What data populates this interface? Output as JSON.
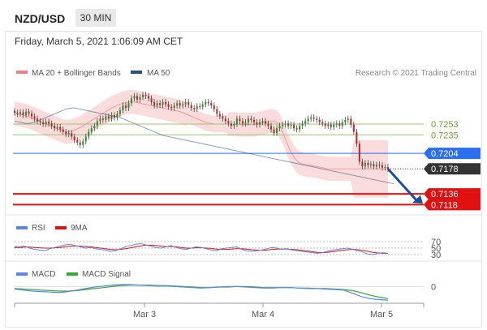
{
  "header": {
    "symbol": "NZD/USD",
    "timeframe": "30 MIN",
    "datetime": "Friday, March 5, 2021 1:06:09 AM CET"
  },
  "legend": {
    "bollinger": "MA 20 + Bollinger Bands",
    "ma50": "MA 50"
  },
  "copyright": "Research © 2021 Trading Central",
  "colors": {
    "bollinger": "#f08080",
    "ma50": "#2a4f8f",
    "bull": "#2f8f2f",
    "bear": "#b03030",
    "resistance": "#9cc36f",
    "pivot": "#2d6df0",
    "support": "#e11111"
  },
  "rsi_legend": {
    "rsi": "RSI",
    "ma": "9MA"
  },
  "macd_legend": {
    "macd": "MACD",
    "signal": "MACD Signal"
  },
  "chart_data": [
    {
      "type": "candlestick",
      "ylim": [
        0.7105,
        0.7325
      ],
      "x_ticks": [
        "Mar 3",
        "Mar 4",
        "Mar 5"
      ],
      "price_levels": [
        {
          "label": "0.7253",
          "value": 0.7253,
          "kind": "resistance"
        },
        {
          "label": "0.7235",
          "value": 0.7235,
          "kind": "resistance"
        },
        {
          "label": "0.7204",
          "value": 0.7204,
          "kind": "pivot"
        },
        {
          "label": "0.7178",
          "value": 0.7178,
          "kind": "last"
        },
        {
          "label": "0.7136",
          "value": 0.7136,
          "kind": "support"
        },
        {
          "label": "0.7118",
          "value": 0.7118,
          "kind": "support"
        }
      ],
      "close": [
        0.7272,
        0.727,
        0.7273,
        0.7268,
        0.7274,
        0.7271,
        0.7266,
        0.7262,
        0.7258,
        0.7256,
        0.7253,
        0.7257,
        0.7254,
        0.725,
        0.7246,
        0.7248,
        0.7244,
        0.724,
        0.7236,
        0.7238,
        0.7232,
        0.7226,
        0.7222,
        0.7218,
        0.7224,
        0.7232,
        0.724,
        0.7246,
        0.725,
        0.7258,
        0.7262,
        0.726,
        0.7266,
        0.7262,
        0.7268,
        0.7264,
        0.727,
        0.7276,
        0.7284,
        0.728,
        0.7288,
        0.7296,
        0.73,
        0.7294,
        0.7298,
        0.7302,
        0.73,
        0.7296,
        0.729,
        0.7284,
        0.7288,
        0.7285,
        0.729,
        0.7286,
        0.7282,
        0.728,
        0.7284,
        0.7288,
        0.7284,
        0.7286,
        0.729,
        0.7285,
        0.728,
        0.7278,
        0.7283,
        0.7282,
        0.7286,
        0.729,
        0.7288,
        0.7284,
        0.7278,
        0.727,
        0.7266,
        0.7262,
        0.7258,
        0.7254,
        0.725,
        0.7253,
        0.7262,
        0.7258,
        0.7254,
        0.7256,
        0.7262,
        0.726,
        0.7256,
        0.7252,
        0.7256,
        0.7258,
        0.7254,
        0.725,
        0.7244,
        0.7238,
        0.7246,
        0.725,
        0.7252,
        0.7254,
        0.725,
        0.7252,
        0.7246,
        0.7244,
        0.725,
        0.7254,
        0.7258,
        0.7262,
        0.7264,
        0.7262,
        0.726,
        0.7256,
        0.7254,
        0.725,
        0.7252,
        0.7248,
        0.7252,
        0.7254,
        0.725,
        0.7256,
        0.726,
        0.7262,
        0.7252,
        0.724,
        0.722,
        0.719,
        0.7182,
        0.7188,
        0.7184,
        0.7186,
        0.7182,
        0.7185,
        0.7184,
        0.718,
        0.7181,
        0.7178
      ],
      "ma20": [
        0.727,
        0.727,
        0.7269,
        0.7268,
        0.7267,
        0.7265,
        0.7263,
        0.7261,
        0.7259,
        0.7257,
        0.7255,
        0.7253,
        0.7251,
        0.7249,
        0.7247,
        0.7245,
        0.7243,
        0.7241,
        0.724,
        0.724,
        0.7241,
        0.7243,
        0.7245,
        0.7247,
        0.725,
        0.7253,
        0.7256,
        0.7259,
        0.7262,
        0.7265,
        0.7268,
        0.7271,
        0.7274,
        0.7277,
        0.728,
        0.7282,
        0.7284,
        0.7286,
        0.7288,
        0.7289,
        0.729,
        0.729,
        0.729,
        0.7289,
        0.7288,
        0.7287,
        0.7286,
        0.7285,
        0.7284,
        0.7283,
        0.7282,
        0.7281,
        0.728,
        0.7279,
        0.7278,
        0.7277,
        0.7276,
        0.7275,
        0.7274,
        0.7272,
        0.727,
        0.7268,
        0.7266,
        0.7264,
        0.7262,
        0.726,
        0.7258,
        0.7256,
        0.7255,
        0.7254,
        0.7253,
        0.7253,
        0.7253,
        0.7253,
        0.7253,
        0.7253,
        0.7253,
        0.7253,
        0.7252,
        0.7252,
        0.7252,
        0.7252,
        0.7252,
        0.7252,
        0.7252,
        0.7253,
        0.7254,
        0.7255,
        0.7256,
        0.7257,
        0.7258,
        0.7258,
        0.7256,
        0.725,
        0.724,
        0.7228,
        0.7216,
        0.7206,
        0.7198,
        0.7192,
        0.7188,
        0.7186,
        0.7185,
        0.7184,
        0.7184,
        0.7183,
        0.7182,
        0.7181,
        0.718,
        0.7179,
        0.7178,
        0.7178,
        0.7178,
        0.7178,
        0.7178,
        0.7178,
        0.7178,
        0.7178,
        0.7178,
        0.7178,
        0.7178,
        0.7178,
        0.7178,
        0.7178,
        0.7178,
        0.7178,
        0.7178,
        0.7178,
        0.7178,
        0.7178,
        0.7178,
        0.7178
      ],
      "bb_width": 0.002,
      "ma50": [
        0.7258,
        0.7257,
        0.7256,
        0.7255,
        0.7254,
        0.7254,
        0.7255,
        0.7256,
        0.7258,
        0.726,
        0.7262,
        0.7264,
        0.7266,
        0.7268,
        0.727,
        0.7272,
        0.7274,
        0.7276,
        0.7278,
        0.7279,
        0.728,
        0.728,
        0.7279,
        0.7278,
        0.7277,
        0.7276,
        0.7275,
        0.7274,
        0.7273,
        0.7272,
        0.7271,
        0.727,
        0.7269,
        0.7268,
        0.7267,
        0.7266,
        0.7265,
        0.7264,
        0.7262,
        0.726,
        0.7258,
        0.7256,
        0.7254,
        0.7252,
        0.725,
        0.7248,
        0.7246,
        0.7244,
        0.7242,
        0.724,
        0.7238,
        0.7236,
        0.7234,
        0.7233,
        0.7232,
        0.7231,
        0.723,
        0.7229,
        0.7228,
        0.7227,
        0.7226,
        0.7225,
        0.7224,
        0.7223,
        0.7222,
        0.7221,
        0.722,
        0.7219,
        0.7218,
        0.7217,
        0.7216,
        0.7215,
        0.7214,
        0.7213,
        0.7212,
        0.7211,
        0.721,
        0.7209,
        0.7208,
        0.7207,
        0.7206,
        0.7205,
        0.7204,
        0.7203,
        0.7202,
        0.7201,
        0.72,
        0.7199,
        0.7198,
        0.7197,
        0.7196,
        0.7195,
        0.7194,
        0.7193,
        0.7192,
        0.7191,
        0.719,
        0.7189,
        0.7188,
        0.7187,
        0.7186,
        0.7185,
        0.7184,
        0.7183,
        0.7182,
        0.7181,
        0.718,
        0.7179,
        0.7178,
        0.7177,
        0.7176,
        0.7175,
        0.7174,
        0.7173,
        0.7172,
        0.7171,
        0.717,
        0.7169,
        0.7168,
        0.7167,
        0.7166,
        0.7165,
        0.7164,
        0.7163,
        0.7162,
        0.7161,
        0.716,
        0.7159,
        0.7158,
        0.7157,
        0.7156,
        0.7155,
        0.7154,
        0.7153
      ]
    },
    {
      "type": "line",
      "name": "RSI",
      "y_ticks": [
        "70",
        "50",
        "30"
      ],
      "ylim": [
        25,
        75
      ],
      "series": [
        {
          "name": "RSI",
          "values": [
            55,
            54,
            56,
            50,
            46,
            44,
            42,
            48,
            52,
            56,
            60,
            62,
            58,
            54,
            50,
            52,
            48,
            46,
            44,
            40,
            42,
            48,
            54,
            58,
            62,
            64,
            60,
            56,
            52,
            50,
            54,
            58,
            52,
            48,
            46,
            50,
            54,
            52,
            48,
            44,
            42,
            48,
            50,
            52,
            54,
            46,
            42,
            40,
            42,
            44,
            48,
            52,
            50,
            46,
            48,
            44,
            42,
            40,
            38,
            36,
            34,
            36,
            40,
            44,
            46,
            48,
            50,
            46,
            42,
            38,
            32,
            30,
            34,
            36,
            34
          ]
        },
        {
          "name": "9MA",
          "values": [
            52,
            52,
            53,
            53,
            52,
            51,
            50,
            50,
            51,
            52,
            54,
            56,
            57,
            56,
            55,
            54,
            52,
            50,
            48,
            46,
            45,
            46,
            48,
            51,
            54,
            57,
            59,
            59,
            58,
            56,
            55,
            55,
            54,
            52,
            50,
            50,
            51,
            51,
            50,
            49,
            47,
            46,
            46,
            47,
            48,
            48,
            47,
            45,
            44,
            43,
            44,
            46,
            47,
            47,
            47,
            46,
            45,
            43,
            41,
            39,
            37,
            36,
            37,
            39,
            41,
            43,
            45,
            46,
            45,
            43,
            40,
            37,
            35,
            34,
            34
          ]
        }
      ]
    },
    {
      "type": "line",
      "name": "MACD",
      "y_ticks": [
        "0"
      ],
      "ylim": [
        -0.003,
        0.0012
      ],
      "series": [
        {
          "name": "MACD",
          "values": [
            -0.0005,
            -0.0007,
            -0.0009,
            -0.001,
            -0.0011,
            -0.0012,
            -0.001,
            -0.0007,
            -0.0004,
            -0.0001,
            0.0001,
            0.0003,
            0.0004,
            0.0004,
            0.0003,
            0.0002,
            0.0001,
            0.0001,
            0.0,
            -0.0001,
            -0.0002,
            -0.0003,
            -0.0002,
            -0.0001,
            0.0,
            0.0,
            -0.0001,
            -0.0002,
            -0.0003,
            -0.0003,
            -0.0002,
            -0.0002,
            -0.0003,
            -0.0004,
            -0.0004,
            -0.0005,
            -0.0006,
            -0.0007,
            -0.0013,
            -0.002,
            -0.0024,
            -0.0026,
            -0.0027
          ]
        },
        {
          "name": "MACD Signal",
          "values": [
            -0.0004,
            -0.0005,
            -0.0006,
            -0.0007,
            -0.0008,
            -0.0009,
            -0.0009,
            -0.0008,
            -0.0006,
            -0.0004,
            -0.0002,
            0.0,
            0.0002,
            0.0003,
            0.0003,
            0.0003,
            0.0002,
            0.0002,
            0.0001,
            0.0,
            -0.0001,
            -0.0002,
            -0.0002,
            -0.0001,
            -0.0001,
            0.0,
            0.0,
            -0.0001,
            -0.0002,
            -0.0002,
            -0.0002,
            -0.0002,
            -0.0003,
            -0.0003,
            -0.0004,
            -0.0004,
            -0.0005,
            -0.0006,
            -0.0008,
            -0.0012,
            -0.0017,
            -0.0021,
            -0.0024
          ]
        }
      ]
    }
  ]
}
